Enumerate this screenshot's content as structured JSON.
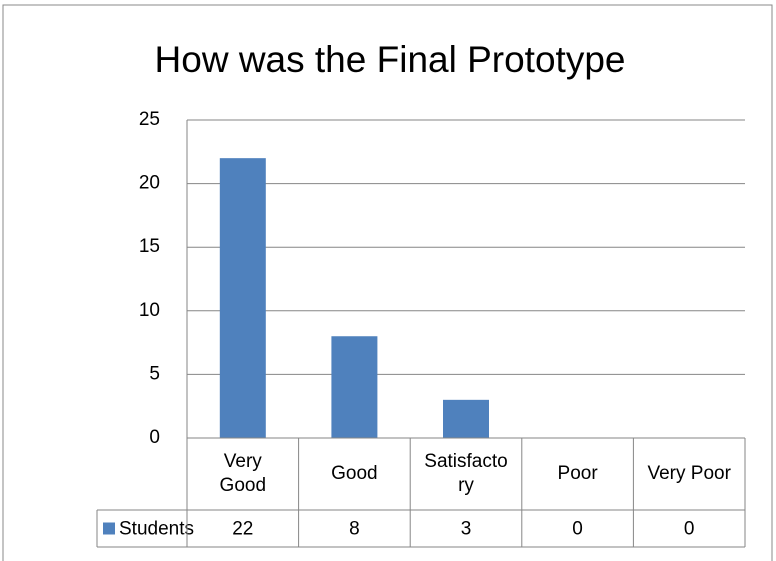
{
  "chart_data": {
    "type": "bar",
    "title": "How was the Final Prototype",
    "categories": [
      "Very Good",
      "Good",
      "Satisfactory",
      "Poor",
      "Very Poor"
    ],
    "series": [
      {
        "name": "Students",
        "color": "#4f81bd",
        "values": [
          22,
          8,
          3,
          0,
          0
        ]
      }
    ],
    "ylim": [
      0,
      25
    ],
    "yticks": [
      0,
      5,
      10,
      15,
      20,
      25
    ],
    "grid": true,
    "data_table": true
  }
}
